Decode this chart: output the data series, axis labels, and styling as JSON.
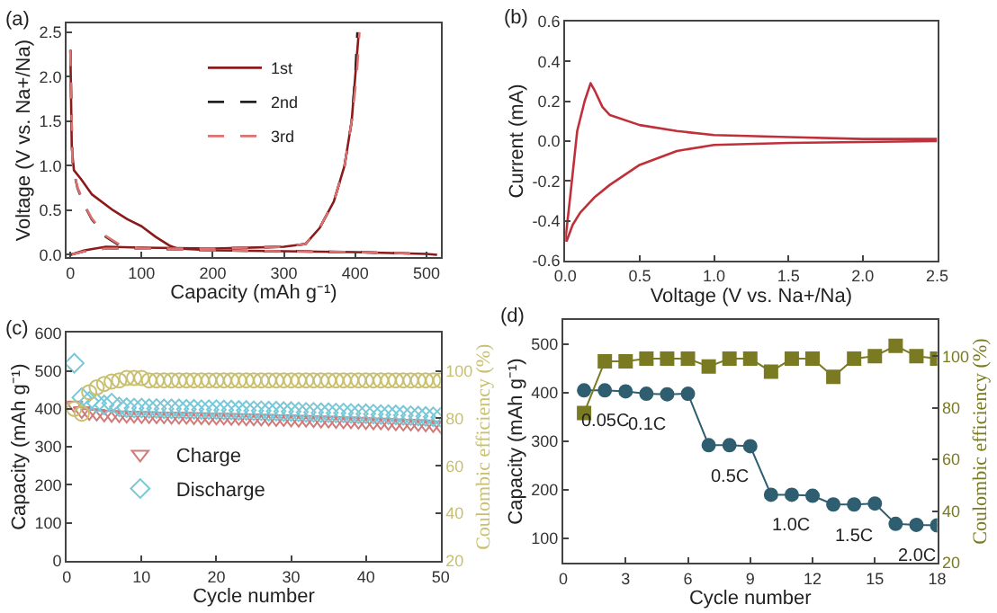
{
  "chart_data": [
    {
      "type": "line",
      "title": "(a)",
      "xlabel": "Capacity (mAh g⁻¹)",
      "ylabel": "Voltage (V vs. Na+/Na)",
      "xlim": [
        -5,
        520
      ],
      "xticks": [
        0,
        100,
        200,
        300,
        400,
        500
      ],
      "ylim": [
        -0.03,
        2.6
      ],
      "yticks": [
        {
          "value": 0,
          "label": "0.0"
        },
        0.5,
        {
          "value": 1,
          "label": "1.0"
        },
        1.5,
        {
          "value": 2,
          "label": "2.0"
        },
        2.5
      ],
      "legend": "top",
      "marker": "none",
      "series": [
        {
          "name": "1st",
          "color": "#8b1a1a",
          "line_style": "solid",
          "x": [
            0,
            2,
            5,
            15,
            30,
            60,
            80,
            100,
            120,
            140,
            150,
            200,
            300,
            400,
            500,
            515,
            null,
            0,
            20,
            50,
            100,
            200,
            300,
            330,
            350,
            370,
            385,
            395,
            400,
            405
          ],
          "values": [
            2.3,
            1.2,
            0.95,
            0.85,
            0.68,
            0.5,
            0.4,
            0.32,
            0.2,
            0.1,
            0.07,
            0.05,
            0.04,
            0.03,
            0.01,
            0.0,
            null,
            0.0,
            0.05,
            0.09,
            0.08,
            0.07,
            0.09,
            0.12,
            0.3,
            0.6,
            1.0,
            1.5,
            2.0,
            2.5
          ]
        },
        {
          "name": "2nd",
          "color": "#222222",
          "line_style": "dashed",
          "x": [
            0,
            3,
            10,
            20,
            30,
            50,
            70,
            100,
            150,
            200,
            300,
            400,
            500,
            null,
            0,
            20,
            50,
            100,
            200,
            300,
            330,
            350,
            370,
            385,
            395,
            400,
            403
          ],
          "values": [
            2.3,
            1.0,
            0.75,
            0.55,
            0.4,
            0.2,
            0.1,
            0.07,
            0.06,
            0.05,
            0.04,
            0.03,
            0.01,
            null,
            0.0,
            0.04,
            0.07,
            0.07,
            0.07,
            0.09,
            0.12,
            0.3,
            0.6,
            1.0,
            1.5,
            2.0,
            2.5
          ]
        },
        {
          "name": "3rd",
          "color": "#e07070",
          "line_style": "dashed",
          "x": [
            0,
            3,
            10,
            20,
            30,
            50,
            70,
            100,
            150,
            200,
            300,
            400,
            500,
            null,
            0,
            20,
            50,
            100,
            200,
            300,
            330,
            350,
            370,
            385,
            395,
            402,
            406
          ],
          "values": [
            2.3,
            1.0,
            0.76,
            0.56,
            0.41,
            0.21,
            0.11,
            0.07,
            0.06,
            0.05,
            0.04,
            0.03,
            0.01,
            null,
            0.0,
            0.04,
            0.07,
            0.07,
            0.07,
            0.09,
            0.12,
            0.3,
            0.6,
            1.0,
            1.5,
            2.0,
            2.5
          ]
        }
      ]
    },
    {
      "type": "line",
      "title": "(b)",
      "xlabel": "Voltage (V vs. Na+/Na)",
      "ylabel": "Current (mA)",
      "xlim": [
        0,
        2.5
      ],
      "xticks": [
        {
          "value": 0,
          "label": "0.0"
        },
        0.5,
        {
          "value": 1,
          "label": "1.0"
        },
        1.5,
        {
          "value": 2,
          "label": "2.0"
        },
        2.5
      ],
      "ylim": [
        -0.6,
        0.6
      ],
      "yticks": [
        -0.6,
        -0.4,
        -0.2,
        {
          "value": 0,
          "label": "0.0"
        },
        0.2,
        0.4,
        0.6
      ],
      "marker": "none",
      "series": [
        {
          "color": "#c0303a",
          "line_style": "solid",
          "x": [
            2.5,
            1.5,
            1.0,
            0.75,
            0.5,
            0.3,
            0.2,
            0.1,
            0.05,
            0.01,
            0.0,
            0.03,
            0.08,
            0.13,
            0.17,
            0.2,
            0.25,
            0.3,
            0.5,
            0.75,
            1.0,
            1.5,
            2.0,
            2.5
          ],
          "values": [
            0.0,
            -0.01,
            -0.02,
            -0.05,
            -0.12,
            -0.22,
            -0.28,
            -0.36,
            -0.42,
            -0.5,
            -0.5,
            -0.3,
            0.05,
            0.2,
            0.29,
            0.25,
            0.17,
            0.13,
            0.08,
            0.05,
            0.03,
            0.02,
            0.01,
            0.01
          ]
        }
      ]
    },
    {
      "type": "scatter",
      "title": "(c)",
      "xlabel": "Cycle number",
      "ylabel": "Capacity (mAh g⁻¹)",
      "y2label": "Coulombic efficiency (%)",
      "xlim": [
        0,
        50
      ],
      "xticks": [
        0,
        10,
        20,
        30,
        40,
        50
      ],
      "ylim": [
        0,
        600
      ],
      "yticks": [
        0,
        100,
        200,
        300,
        400,
        500,
        600
      ],
      "y2lim": [
        20,
        116
      ],
      "y2ticks": [
        20,
        40,
        60,
        80,
        100
      ],
      "legend": "left",
      "x": [
        1,
        2,
        3,
        4,
        5,
        6,
        7,
        8,
        9,
        10,
        11,
        12,
        13,
        14,
        15,
        16,
        17,
        18,
        19,
        20,
        21,
        22,
        23,
        24,
        25,
        26,
        27,
        28,
        29,
        30,
        31,
        32,
        33,
        34,
        35,
        36,
        37,
        38,
        39,
        40,
        41,
        42,
        43,
        44,
        45,
        46,
        47,
        48,
        49,
        50
      ],
      "series": [
        {
          "name": "Charge",
          "color": "#d07a7a",
          "marker": "triangle",
          "values": [
            410,
            395,
            390,
            388,
            386,
            385,
            384,
            383,
            383,
            382,
            382,
            381,
            381,
            380,
            380,
            380,
            379,
            379,
            378,
            378,
            378,
            377,
            377,
            376,
            376,
            375,
            375,
            374,
            374,
            373,
            372,
            372,
            371,
            370,
            370,
            369,
            368,
            368,
            367,
            366,
            365,
            365,
            364,
            363,
            362,
            362,
            361,
            360,
            358,
            356
          ]
        },
        {
          "name": "Discharge",
          "color": "#78c8d8",
          "marker": "diamond",
          "values": [
            520,
            430,
            420,
            415,
            410,
            415,
            405,
            403,
            402,
            402,
            401,
            401,
            400,
            400,
            400,
            399,
            399,
            398,
            398,
            398,
            397,
            397,
            396,
            396,
            395,
            395,
            394,
            394,
            393,
            393,
            392,
            391,
            391,
            390,
            390,
            389,
            389,
            388,
            387,
            387,
            386,
            385,
            385,
            384,
            383,
            382,
            381,
            380,
            379,
            378
          ]
        },
        {
          "color": "#c8c070",
          "marker": "circle",
          "axis": "y2",
          "values": [
            84,
            82,
            91,
            93,
            94.5,
            95.5,
            96,
            97,
            97,
            97,
            96,
            96,
            96,
            96,
            96,
            96,
            96,
            96,
            96,
            96,
            96,
            96,
            96,
            96,
            96,
            96,
            96,
            96,
            96,
            96,
            96,
            96,
            96,
            96,
            96,
            96,
            96,
            96,
            96,
            96,
            96,
            96,
            96,
            96,
            96,
            96,
            96,
            96,
            96,
            96
          ]
        }
      ]
    },
    {
      "type": "line",
      "title": "(d)",
      "xlabel": "Cycle number",
      "ylabel": "Capacity (mAh g⁻¹)",
      "y2label": "Coulombic efficiency (%)",
      "xlim": [
        0,
        18
      ],
      "xticks": [
        0,
        3,
        6,
        9,
        12,
        15,
        18
      ],
      "ylim": [
        50,
        550
      ],
      "yticks": [
        100,
        200,
        300,
        400,
        500
      ],
      "y2lim": [
        20,
        114
      ],
      "y2ticks": [
        20,
        40,
        60,
        80,
        100
      ],
      "x": [
        1,
        2,
        3,
        4,
        5,
        6,
        7,
        8,
        9,
        10,
        11,
        12,
        13,
        14,
        15,
        16,
        17,
        18
      ],
      "series": [
        {
          "color": "#2e5e70",
          "marker": "circle",
          "line_style": "solid",
          "values": [
            405,
            405,
            403,
            398,
            397,
            398,
            292,
            292,
            290,
            190,
            190,
            188,
            170,
            170,
            172,
            130,
            128,
            127
          ]
        },
        {
          "color": "#7a7a22",
          "marker": "square",
          "line_style": "solid",
          "axis": "y2",
          "values": [
            78,
            98,
            98,
            99,
            99,
            99,
            96,
            99,
            99,
            94,
            99,
            99,
            92,
            99,
            100,
            104,
            100,
            99
          ]
        }
      ],
      "annotations": [
        {
          "text": "0.05C",
          "x": 2,
          "y": 405
        },
        {
          "text": "0.1C",
          "x": 4,
          "y": 398
        },
        {
          "text": "0.5C",
          "x": 8,
          "y": 292
        },
        {
          "text": "1.0C",
          "x": 11,
          "y": 190
        },
        {
          "text": "1.5C",
          "x": 14,
          "y": 170
        },
        {
          "text": "2.0C",
          "x": 17,
          "y": 128
        }
      ]
    }
  ]
}
